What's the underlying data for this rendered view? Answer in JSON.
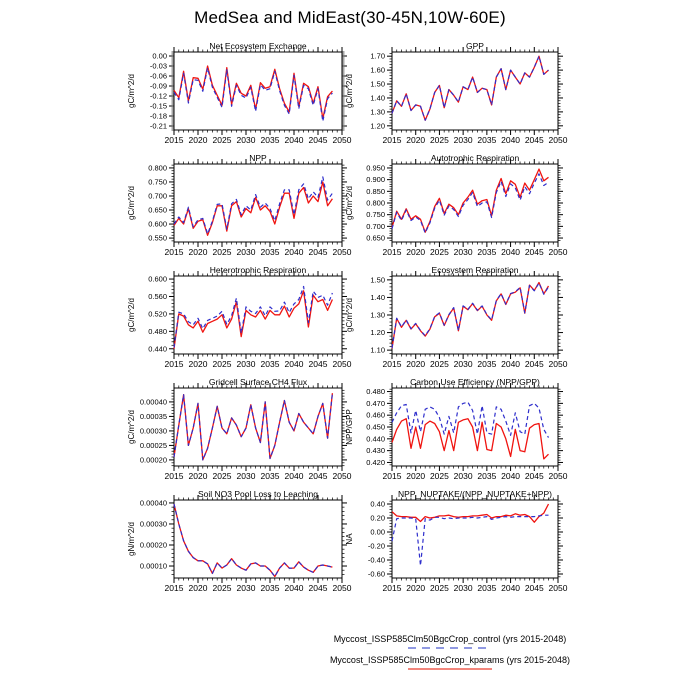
{
  "legend": {
    "entries": [
      {
        "label": "Myccost_ISSP585Clm50BgcCrop_control (yrs 2015-2048)",
        "style": "dashed",
        "color": "#9099e2"
      },
      {
        "label": "Myccost_ISSP585Clm50BgcCrop_kparams (yrs 2015-2048)",
        "style": "solid",
        "color": "#f2867c"
      }
    ]
  },
  "chart_data": {
    "type": "line",
    "suptitle": "MedSea and MidEast(30-45N,10W-60E)",
    "layout_note": "5 rows x 2 columns of time-series panels, control=blue dashed, kparams=red solid",
    "xlim": [
      2015,
      2050
    ],
    "x_ticks": [
      2015,
      2020,
      2025,
      2030,
      2035,
      2040,
      2045,
      2050
    ],
    "x_tick_labels": [
      "2015",
      "2020",
      "2025",
      "2030",
      "2035",
      "2040",
      "2045",
      "2050"
    ],
    "years": [
      2015,
      2016,
      2017,
      2018,
      2019,
      2020,
      2021,
      2022,
      2023,
      2024,
      2025,
      2026,
      2027,
      2028,
      2029,
      2030,
      2031,
      2032,
      2033,
      2034,
      2035,
      2036,
      2037,
      2038,
      2039,
      2040,
      2041,
      2042,
      2043,
      2044,
      2045,
      2046,
      2047,
      2048
    ],
    "colors": {
      "control": "#2e2ecc",
      "kparams": "#f01410"
    },
    "series_names": {
      "control": "Myccost_ISSP585Clm50BgcCrop_control",
      "kparams": "Myccost_ISSP585Clm50BgcCrop_kparams"
    },
    "panels": [
      {
        "id": "net-ecosystem-exchange",
        "title": "Net Ecosystem Exchange",
        "ylabel": "gC/m^2/d",
        "ylim": [
          -0.222,
          0.012
        ],
        "yticks": [
          0.0,
          -0.03,
          -0.06,
          -0.09,
          -0.12,
          -0.15,
          -0.18,
          -0.21
        ],
        "ytick_labels": [
          "0.00",
          "-0.03",
          "-0.06",
          "-0.09",
          "-0.12",
          "-0.15",
          "-0.18",
          "-0.21"
        ],
        "kparams": [
          -0.103,
          -0.125,
          -0.046,
          -0.135,
          -0.065,
          -0.067,
          -0.1,
          -0.03,
          -0.088,
          -0.118,
          -0.148,
          -0.035,
          -0.145,
          -0.082,
          -0.112,
          -0.12,
          -0.088,
          -0.16,
          -0.08,
          -0.097,
          -0.092,
          -0.04,
          -0.098,
          -0.142,
          -0.168,
          -0.052,
          -0.152,
          -0.082,
          -0.092,
          -0.142,
          -0.092,
          -0.188,
          -0.122,
          -0.105
        ],
        "control": [
          -0.109,
          -0.131,
          -0.052,
          -0.141,
          -0.071,
          -0.073,
          -0.106,
          -0.036,
          -0.094,
          -0.124,
          -0.154,
          -0.041,
          -0.151,
          -0.088,
          -0.118,
          -0.126,
          -0.094,
          -0.166,
          -0.086,
          -0.103,
          -0.098,
          -0.046,
          -0.104,
          -0.148,
          -0.174,
          -0.058,
          -0.158,
          -0.088,
          -0.098,
          -0.148,
          -0.098,
          -0.196,
          -0.128,
          -0.111
        ]
      },
      {
        "id": "gpp",
        "title": "GPP",
        "ylabel": "gC/m^2/d",
        "ylim": [
          1.17,
          1.73
        ],
        "yticks": [
          1.2,
          1.3,
          1.4,
          1.5,
          1.6,
          1.7
        ],
        "ytick_labels": [
          "1.20",
          "1.30",
          "1.40",
          "1.50",
          "1.60",
          "1.70"
        ],
        "kparams": [
          1.29,
          1.38,
          1.34,
          1.43,
          1.31,
          1.35,
          1.34,
          1.24,
          1.32,
          1.44,
          1.49,
          1.33,
          1.46,
          1.42,
          1.37,
          1.48,
          1.46,
          1.55,
          1.44,
          1.47,
          1.46,
          1.35,
          1.55,
          1.61,
          1.46,
          1.6,
          1.55,
          1.5,
          1.58,
          1.55,
          1.62,
          1.7,
          1.57,
          1.6
        ],
        "control": [
          1.29,
          1.38,
          1.34,
          1.43,
          1.31,
          1.35,
          1.34,
          1.24,
          1.32,
          1.44,
          1.49,
          1.33,
          1.46,
          1.42,
          1.37,
          1.48,
          1.46,
          1.55,
          1.44,
          1.47,
          1.46,
          1.35,
          1.55,
          1.61,
          1.46,
          1.6,
          1.55,
          1.5,
          1.58,
          1.55,
          1.62,
          1.7,
          1.57,
          1.6
        ]
      },
      {
        "id": "npp",
        "title": "NPP",
        "ylabel": "gC/m^2/d",
        "ylim": [
          0.536,
          0.814
        ],
        "yticks": [
          0.55,
          0.6,
          0.65,
          0.7,
          0.75,
          0.8
        ],
        "ytick_labels": [
          "0.550",
          "0.600",
          "0.650",
          "0.700",
          "0.750",
          "0.800"
        ],
        "kparams": [
          0.595,
          0.62,
          0.6,
          0.655,
          0.585,
          0.61,
          0.615,
          0.56,
          0.605,
          0.665,
          0.665,
          0.575,
          0.665,
          0.68,
          0.625,
          0.655,
          0.64,
          0.695,
          0.65,
          0.665,
          0.645,
          0.6,
          0.66,
          0.71,
          0.71,
          0.62,
          0.71,
          0.73,
          0.675,
          0.7,
          0.68,
          0.75,
          0.665,
          0.69
        ],
        "control": [
          0.6,
          0.625,
          0.605,
          0.66,
          0.59,
          0.615,
          0.62,
          0.565,
          0.61,
          0.67,
          0.672,
          0.582,
          0.672,
          0.688,
          0.633,
          0.665,
          0.65,
          0.705,
          0.66,
          0.675,
          0.655,
          0.612,
          0.672,
          0.722,
          0.722,
          0.633,
          0.722,
          0.743,
          0.69,
          0.715,
          0.695,
          0.768,
          0.685,
          0.71
        ]
      },
      {
        "id": "autotrophic-respiration",
        "title": "Autotrophic Respiration",
        "ylabel": "gC/m^2/d",
        "ylim": [
          0.633,
          0.967
        ],
        "yticks": [
          0.65,
          0.7,
          0.75,
          0.8,
          0.85,
          0.9,
          0.95
        ],
        "ytick_labels": [
          "0.650",
          "0.700",
          "0.750",
          "0.800",
          "0.850",
          "0.900",
          "0.950"
        ],
        "kparams": [
          0.695,
          0.765,
          0.73,
          0.775,
          0.73,
          0.745,
          0.73,
          0.675,
          0.72,
          0.785,
          0.82,
          0.755,
          0.795,
          0.78,
          0.75,
          0.8,
          0.825,
          0.855,
          0.795,
          0.81,
          0.815,
          0.745,
          0.855,
          0.905,
          0.84,
          0.895,
          0.88,
          0.825,
          0.885,
          0.855,
          0.9,
          0.945,
          0.895,
          0.91
        ],
        "control": [
          0.69,
          0.76,
          0.725,
          0.77,
          0.725,
          0.74,
          0.725,
          0.672,
          0.715,
          0.778,
          0.812,
          0.748,
          0.787,
          0.772,
          0.742,
          0.79,
          0.815,
          0.845,
          0.785,
          0.8,
          0.805,
          0.738,
          0.845,
          0.893,
          0.828,
          0.882,
          0.865,
          0.812,
          0.87,
          0.84,
          0.885,
          0.925,
          0.875,
          0.888
        ]
      },
      {
        "id": "heterotrophic-respiration",
        "title": "Heterotrophic Respiration",
        "ylabel": "gC/m^2/d",
        "ylim": [
          0.428,
          0.607
        ],
        "yticks": [
          0.44,
          0.48,
          0.52,
          0.56,
          0.6
        ],
        "ytick_labels": [
          "0.440",
          "0.480",
          "0.520",
          "0.560",
          "0.600"
        ],
        "kparams": [
          0.44,
          0.52,
          0.515,
          0.495,
          0.488,
          0.503,
          0.478,
          0.498,
          0.503,
          0.508,
          0.518,
          0.488,
          0.508,
          0.548,
          0.468,
          0.528,
          0.518,
          0.513,
          0.528,
          0.508,
          0.528,
          0.518,
          0.518,
          0.538,
          0.513,
          0.533,
          0.543,
          0.573,
          0.49,
          0.563,
          0.548,
          0.553,
          0.528,
          0.553
        ],
        "control": [
          0.443,
          0.524,
          0.52,
          0.502,
          0.495,
          0.51,
          0.486,
          0.505,
          0.51,
          0.515,
          0.526,
          0.496,
          0.516,
          0.556,
          0.476,
          0.536,
          0.526,
          0.521,
          0.536,
          0.516,
          0.536,
          0.526,
          0.527,
          0.547,
          0.523,
          0.543,
          0.553,
          0.583,
          0.5,
          0.572,
          0.558,
          0.563,
          0.54,
          0.568
        ]
      },
      {
        "id": "ecosystem-respiration",
        "title": "Ecosystem Respiration",
        "ylabel": "gC/m^2/d",
        "ylim": [
          1.078,
          1.522
        ],
        "yticks": [
          1.1,
          1.2,
          1.3,
          1.4,
          1.5
        ],
        "ytick_labels": [
          "1.10",
          "1.20",
          "1.30",
          "1.40",
          "1.50"
        ],
        "kparams": [
          1.11,
          1.28,
          1.23,
          1.27,
          1.22,
          1.25,
          1.21,
          1.18,
          1.22,
          1.29,
          1.31,
          1.24,
          1.3,
          1.34,
          1.21,
          1.35,
          1.33,
          1.365,
          1.325,
          1.35,
          1.3,
          1.27,
          1.38,
          1.42,
          1.36,
          1.42,
          1.43,
          1.455,
          1.31,
          1.47,
          1.44,
          1.485,
          1.42,
          1.465
        ],
        "control": [
          1.112,
          1.282,
          1.232,
          1.272,
          1.222,
          1.252,
          1.212,
          1.182,
          1.222,
          1.292,
          1.312,
          1.242,
          1.302,
          1.342,
          1.212,
          1.352,
          1.332,
          1.367,
          1.327,
          1.352,
          1.302,
          1.272,
          1.382,
          1.422,
          1.362,
          1.422,
          1.432,
          1.457,
          1.312,
          1.468,
          1.438,
          1.482,
          1.418,
          1.46
        ]
      },
      {
        "id": "gridcell-surface-ch4-flux",
        "title": "Gridcell Surface CH4 Flux",
        "ylabel": "gC/m^2/d",
        "ylim": [
          0.000179,
          0.000448
        ],
        "yticks": [
          0.0002,
          0.00025,
          0.0003,
          0.00035,
          0.0004
        ],
        "ytick_labels": [
          "0.00020",
          "0.00025",
          "0.00030",
          "0.00035",
          "0.00040"
        ],
        "kparams": [
          0.00021,
          0.00032,
          0.000425,
          0.00025,
          0.00031,
          0.000395,
          0.0002,
          0.00024,
          0.00031,
          0.000385,
          0.00031,
          0.00029,
          0.000345,
          0.00032,
          0.00028,
          0.00031,
          0.00039,
          0.00031,
          0.00026,
          0.0004,
          0.000205,
          0.00025,
          0.00033,
          0.000405,
          0.00033,
          0.0003,
          0.00036,
          0.00033,
          0.00031,
          0.00029,
          0.00035,
          0.000395,
          0.000275,
          0.00043
        ],
        "control": [
          0.00021,
          0.00032,
          0.000425,
          0.00025,
          0.00031,
          0.000395,
          0.0002,
          0.00024,
          0.00031,
          0.000385,
          0.00031,
          0.00029,
          0.000345,
          0.00032,
          0.00028,
          0.00031,
          0.00039,
          0.00031,
          0.00026,
          0.0004,
          0.000205,
          0.00025,
          0.00033,
          0.000405,
          0.00033,
          0.0003,
          0.00036,
          0.00033,
          0.00031,
          0.00029,
          0.00035,
          0.000395,
          0.000275,
          0.00043
        ]
      },
      {
        "id": "carbon-use-efficiency",
        "title": "Carbon Use Efficiency (NPP/GPP)",
        "ylabel": "NPP/GPP",
        "ylim": [
          0.417,
          0.483
        ],
        "yticks": [
          0.42,
          0.43,
          0.44,
          0.45,
          0.46,
          0.47,
          0.48
        ],
        "ytick_labels": [
          "0.420",
          "0.430",
          "0.440",
          "0.450",
          "0.460",
          "0.470",
          "0.480"
        ],
        "kparams": [
          0.437,
          0.448,
          0.455,
          0.457,
          0.432,
          0.45,
          0.432,
          0.452,
          0.455,
          0.453,
          0.446,
          0.43,
          0.447,
          0.43,
          0.454,
          0.456,
          0.457,
          0.45,
          0.43,
          0.454,
          0.431,
          0.43,
          0.453,
          0.45,
          0.44,
          0.425,
          0.448,
          0.43,
          0.429,
          0.449,
          0.452,
          0.453,
          0.423,
          0.427
        ],
        "control": [
          0.454,
          0.462,
          0.468,
          0.469,
          0.445,
          0.464,
          0.446,
          0.465,
          0.467,
          0.465,
          0.458,
          0.444,
          0.459,
          0.445,
          0.467,
          0.47,
          0.471,
          0.464,
          0.444,
          0.468,
          0.445,
          0.444,
          0.467,
          0.465,
          0.455,
          0.443,
          0.462,
          0.446,
          0.444,
          0.468,
          0.47,
          0.466,
          0.448,
          0.441
        ]
      },
      {
        "id": "soil-no3-pool-loss-to-leaching",
        "title": "Soil NO3 Pool Loss to Leaching",
        "ylabel": "gN/m^2/d",
        "ylim": [
          4.3e-05,
          0.000414
        ],
        "yticks": [
          0.0001,
          0.0002,
          0.0003,
          0.0004
        ],
        "ytick_labels": [
          "0.00010",
          "0.00020",
          "0.00030",
          "0.00040"
        ],
        "kparams": [
          0.000395,
          0.0003,
          0.00022,
          0.00017,
          0.00014,
          0.000125,
          0.000125,
          0.00011,
          6.5e-05,
          0.000115,
          9e-05,
          0.000105,
          0.000135,
          0.000105,
          9e-05,
          8e-05,
          0.00011,
          0.000115,
          0.0001,
          0.0001,
          8e-05,
          5e-05,
          9e-05,
          0.000115,
          9e-05,
          9e-05,
          0.00012,
          9.5e-05,
          8e-05,
          7e-05,
          0.0001,
          0.000105,
          0.0001,
          9.5e-05
        ],
        "control": [
          0.000395,
          0.0003,
          0.00022,
          0.00017,
          0.00014,
          0.000125,
          0.000125,
          0.00011,
          6.5e-05,
          0.000115,
          9e-05,
          0.000105,
          0.000135,
          0.000105,
          9e-05,
          8e-05,
          0.00011,
          0.000115,
          0.0001,
          0.0001,
          8e-05,
          5e-05,
          9e-05,
          0.000115,
          9e-05,
          9e-05,
          0.00012,
          9.5e-05,
          8e-05,
          7e-05,
          0.0001,
          0.000105,
          0.0001,
          9.5e-05
        ]
      },
      {
        "id": "npp-nuptake-ratio",
        "title": "NPP_NUPTAKE/(NPP_NUPTAKE+NPP)",
        "ylabel": "NA",
        "ylim": [
          -0.657,
          0.457
        ],
        "yticks": [
          -0.6,
          -0.4,
          -0.2,
          0.0,
          0.2,
          0.4
        ],
        "ytick_labels": [
          "-0.60",
          "-0.40",
          "-0.20",
          "0.00",
          "0.20",
          "0.40"
        ],
        "kparams": [
          0.29,
          0.23,
          0.22,
          0.22,
          0.21,
          0.21,
          0.15,
          0.22,
          0.2,
          0.21,
          0.23,
          0.23,
          0.24,
          0.22,
          0.21,
          0.22,
          0.22,
          0.23,
          0.23,
          0.24,
          0.25,
          0.2,
          0.22,
          0.22,
          0.24,
          0.23,
          0.26,
          0.24,
          0.25,
          0.22,
          0.14,
          0.22,
          0.27,
          0.4
        ],
        "control": [
          -0.13,
          0.19,
          0.2,
          0.2,
          0.2,
          0.19,
          -0.48,
          0.19,
          0.17,
          0.21,
          0.21,
          0.19,
          0.2,
          0.19,
          0.2,
          0.2,
          0.2,
          0.21,
          0.2,
          0.21,
          0.22,
          0.18,
          0.2,
          0.21,
          0.22,
          0.21,
          0.22,
          0.22,
          0.22,
          0.22,
          0.22,
          0.23,
          0.24,
          0.24
        ]
      }
    ]
  }
}
